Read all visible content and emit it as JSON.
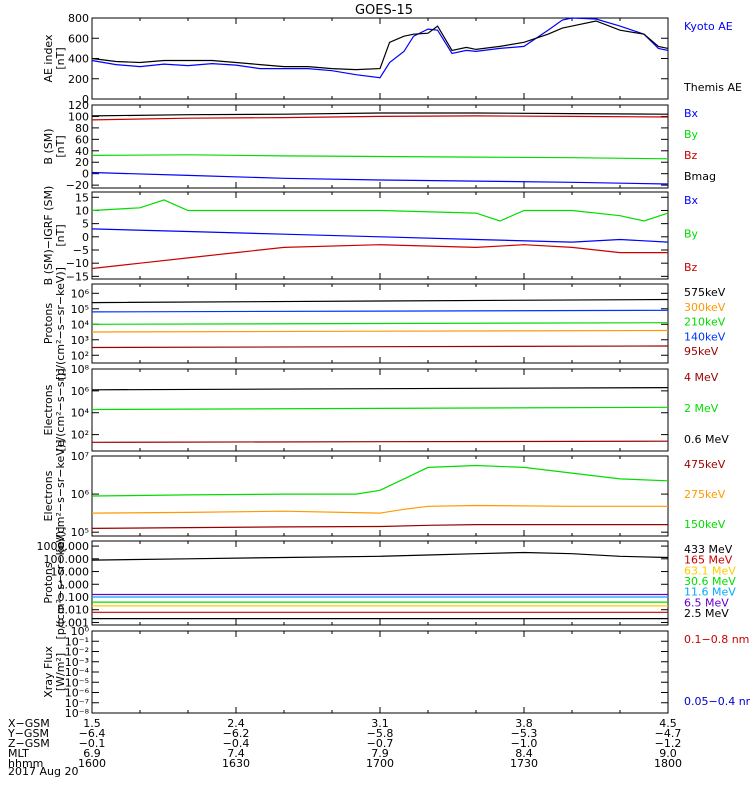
{
  "chart_data": {
    "type": "line",
    "title": "GOES-15",
    "date_label": "2017 Aug 20",
    "time_range": [
      "1600",
      "1800"
    ],
    "panels": [
      {
        "id": "ae",
        "ylabel": [
          "AE index",
          "[nT]"
        ],
        "ylim": [
          0,
          800
        ],
        "scale": "linear",
        "ticks": [
          0,
          200,
          400,
          600,
          800
        ],
        "tick_labels": [
          "0",
          "200",
          "400",
          "600",
          "800"
        ],
        "series": [
          {
            "name": "Kyoto AE",
            "color": "#0000ff",
            "x": [
              0,
              5,
              10,
              15,
              20,
              25,
              30,
              35,
              40,
              45,
              50,
              55,
              60,
              62,
              65,
              67,
              70,
              72,
              75,
              78,
              80,
              85,
              90,
              95,
              98,
              100,
              105,
              110,
              115,
              118,
              120
            ],
            "y": [
              380,
              340,
              320,
              345,
              330,
              350,
              335,
              300,
              300,
              300,
              280,
              240,
              210,
              360,
              470,
              620,
              690,
              680,
              450,
              480,
              470,
              500,
              520,
              680,
              780,
              800,
              790,
              720,
              640,
              500,
              480
            ]
          },
          {
            "name": "Themis AE",
            "color": "#000000",
            "x": [
              0,
              5,
              10,
              15,
              20,
              25,
              30,
              35,
              40,
              45,
              50,
              55,
              60,
              62,
              65,
              67,
              70,
              72,
              75,
              78,
              80,
              85,
              90,
              95,
              98,
              100,
              105,
              110,
              115,
              118,
              120
            ],
            "y": [
              400,
              370,
              360,
              380,
              380,
              380,
              360,
              340,
              320,
              320,
              300,
              290,
              300,
              560,
              620,
              640,
              650,
              720,
              480,
              510,
              490,
              520,
              560,
              640,
              700,
              720,
              770,
              680,
              640,
              520,
              500
            ]
          }
        ]
      },
      {
        "id": "bsm",
        "ylabel": [
          "B (SM)",
          "[nT]"
        ],
        "ylim": [
          -25,
          120
        ],
        "scale": "linear",
        "ticks": [
          -20,
          0,
          20,
          40,
          60,
          80,
          100,
          120
        ],
        "tick_labels": [
          "−20",
          "0",
          "20",
          "40",
          "60",
          "80",
          "100",
          "120"
        ],
        "series": [
          {
            "name": "Bx",
            "color": "#0000ff",
            "x": [
              0,
              20,
              40,
              60,
              80,
              100,
              120
            ],
            "y": [
              2,
              -3,
              -8,
              -11,
              -13,
              -15,
              -18
            ]
          },
          {
            "name": "By",
            "color": "#00dd00",
            "x": [
              0,
              20,
              40,
              60,
              80,
              100,
              120
            ],
            "y": [
              32,
              33,
              31,
              30,
              29,
              28,
              26
            ]
          },
          {
            "name": "Bz",
            "color": "#cc0000",
            "x": [
              0,
              20,
              40,
              60,
              80,
              100,
              120
            ],
            "y": [
              94,
              97,
              98,
              100,
              101,
              100,
              99
            ]
          },
          {
            "name": "Bmag",
            "color": "#000000",
            "x": [
              0,
              20,
              40,
              60,
              80,
              100,
              120
            ],
            "y": [
              101,
              103,
              104,
              106,
              106,
              105,
              104
            ]
          }
        ]
      },
      {
        "id": "bigrf",
        "ylabel": [
          "B (SM)−IGRF (SM)",
          "[nT]"
        ],
        "ylim": [
          -16,
          17
        ],
        "scale": "linear",
        "ticks": [
          -15,
          -10,
          -5,
          0,
          5,
          10,
          15
        ],
        "tick_labels": [
          "−15",
          "−10",
          "−5",
          "0",
          "5",
          "10",
          "15"
        ],
        "series": [
          {
            "name": "Bx",
            "color": "#0000ff",
            "x": [
              0,
              20,
              40,
              60,
              80,
              100,
              110,
              120
            ],
            "y": [
              3,
              2,
              1,
              0,
              -1,
              -2,
              -1,
              -2
            ]
          },
          {
            "name": "By",
            "color": "#00dd00",
            "x": [
              0,
              10,
              15,
              20,
              40,
              60,
              80,
              85,
              90,
              100,
              110,
              115,
              120
            ],
            "y": [
              10,
              11,
              14,
              10,
              10,
              10,
              9,
              6,
              10,
              10,
              8,
              6,
              9
            ]
          },
          {
            "name": "Bz",
            "color": "#cc0000",
            "x": [
              0,
              10,
              20,
              30,
              40,
              60,
              80,
              90,
              100,
              110,
              120
            ],
            "y": [
              -12,
              -10,
              -8,
              -6,
              -4,
              -3,
              -4,
              -3,
              -4,
              -6,
              -6
            ]
          }
        ]
      },
      {
        "id": "protons",
        "ylabel": [
          "Protons",
          "[p/(cm²−s−sr−keV)]"
        ],
        "ylim_log": [
          1.5,
          6.6
        ],
        "scale": "log",
        "ticks": [
          2,
          3,
          4,
          5,
          6
        ],
        "tick_labels": [
          "10²",
          "10³",
          "10⁴",
          "10⁵",
          "10⁶"
        ],
        "series": [
          {
            "name": "575keV",
            "color": "#000000",
            "x": [
              0,
              60,
              120
            ],
            "y": [
              5.4,
              5.5,
              5.6
            ]
          },
          {
            "name": "300keV",
            "color": "#ff9900",
            "x": [
              0,
              60,
              120
            ],
            "y": [
              3.5,
              3.55,
              3.6
            ]
          },
          {
            "name": "210keV",
            "color": "#00dd00",
            "x": [
              0,
              60,
              120
            ],
            "y": [
              4.0,
              4.05,
              4.1
            ]
          },
          {
            "name": "140keV",
            "color": "#0033ff",
            "x": [
              0,
              60,
              120
            ],
            "y": [
              4.8,
              4.85,
              4.9
            ]
          },
          {
            "name": "95keV",
            "color": "#990000",
            "x": [
              0,
              60,
              120
            ],
            "y": [
              2.5,
              2.55,
              2.6
            ]
          }
        ]
      },
      {
        "id": "electrons_mev",
        "ylabel": [
          "Electrons",
          "[e/(cm²−s−sr)]"
        ],
        "ylim_log": [
          0.5,
          8
        ],
        "scale": "log",
        "ticks": [
          2,
          4,
          6,
          8
        ],
        "tick_labels": [
          "10²",
          "10⁴",
          "10⁶",
          "10⁸"
        ],
        "series": [
          {
            "name": "4 MeV",
            "color": "#990000",
            "x": [
              0,
              60,
              120
            ],
            "y": [
              1.3,
              1.35,
              1.4
            ]
          },
          {
            "name": "2 MeV",
            "color": "#00dd00",
            "x": [
              0,
              60,
              120
            ],
            "y": [
              4.3,
              4.4,
              4.5
            ]
          },
          {
            "name": "0.6 MeV",
            "color": "#000000",
            "x": [
              0,
              60,
              120
            ],
            "y": [
              6.1,
              6.2,
              6.3
            ]
          }
        ]
      },
      {
        "id": "electrons_kev",
        "ylabel": [
          "Electrons",
          "[e/(cm²−s−sr−keV)]"
        ],
        "ylim_log": [
          4.9,
          7.0
        ],
        "scale": "log",
        "ticks": [
          5,
          6,
          7
        ],
        "tick_labels": [
          "10⁵",
          "10⁶",
          "10⁷"
        ],
        "series": [
          {
            "name": "475keV",
            "color": "#990000",
            "x": [
              0,
              20,
              40,
              60,
              70,
              80,
              100,
              120
            ],
            "y": [
              5.1,
              5.12,
              5.14,
              5.15,
              5.18,
              5.2,
              5.2,
              5.2
            ]
          },
          {
            "name": "275keV",
            "color": "#ff9900",
            "x": [
              0,
              20,
              40,
              60,
              65,
              70,
              80,
              100,
              120
            ],
            "y": [
              5.5,
              5.52,
              5.55,
              5.5,
              5.6,
              5.68,
              5.7,
              5.68,
              5.68
            ]
          },
          {
            "name": "150keV",
            "color": "#00dd00",
            "x": [
              0,
              20,
              40,
              55,
              60,
              65,
              70,
              80,
              90,
              100,
              110,
              120
            ],
            "y": [
              5.95,
              5.98,
              6.0,
              6.0,
              6.1,
              6.4,
              6.7,
              6.75,
              6.7,
              6.55,
              6.4,
              6.35
            ]
          }
        ]
      },
      {
        "id": "protons_mev",
        "ylabel": [
          "Protons",
          "[p/(cm²−s−sr−keV)]"
        ],
        "ylim_log": [
          -3.2,
          3.4
        ],
        "scale": "log",
        "ticks": [
          -3,
          -2,
          -1,
          0,
          1,
          2,
          3
        ],
        "tick_labels": [
          "0.001",
          "0.010",
          "0.100",
          "1.000",
          "10.000",
          "100.000",
          "1000.000"
        ],
        "series": [
          {
            "name": "433 MeV",
            "color": "#000000",
            "x": [
              0,
              20,
              40,
              60,
              70,
              80,
              90,
              100,
              110,
              120
            ],
            "y": [
              1.9,
              2.0,
              2.1,
              2.2,
              2.3,
              2.4,
              2.5,
              2.4,
              2.2,
              2.1
            ]
          },
          {
            "name": "165 MeV",
            "color": "#cc0000",
            "x": [
              0,
              60,
              120
            ],
            "y": [
              -2.2,
              -2.2,
              -2.2
            ]
          },
          {
            "name": "63.1 MeV",
            "color": "#ffcc00",
            "x": [
              0,
              60,
              120
            ],
            "y": [
              -1.7,
              -1.7,
              -1.7
            ]
          },
          {
            "name": "30.6 MeV",
            "color": "#00dd00",
            "x": [
              0,
              60,
              120
            ],
            "y": [
              -1.4,
              -1.4,
              -1.4
            ]
          },
          {
            "name": "11.6 MeV",
            "color": "#00aaff",
            "x": [
              0,
              60,
              120
            ],
            "y": [
              -1.0,
              -1.0,
              -1.0
            ]
          },
          {
            "name": "6.5 MeV",
            "color": "#6600cc",
            "x": [
              0,
              60,
              120
            ],
            "y": [
              -0.8,
              -0.8,
              -0.8
            ]
          },
          {
            "name": "2.5 MeV",
            "color": "#000000",
            "x": [
              0,
              60,
              120
            ],
            "y": [
              -2.7,
              -2.7,
              -2.7
            ]
          }
        ]
      },
      {
        "id": "xray",
        "ylabel": [
          "Xray Flux",
          "[W/m²]"
        ],
        "ylim_log": [
          -8,
          0
        ],
        "scale": "log",
        "ticks": [
          -8,
          -7,
          -6,
          -5,
          -4,
          -3,
          -2,
          -1,
          0
        ],
        "tick_labels": [
          "10⁻⁸",
          "10⁻⁷",
          "10⁻⁶",
          "10⁻⁵",
          "10⁻⁴",
          "10⁻³",
          "10⁻²",
          "10⁻¹",
          "10⁰"
        ],
        "series": [
          {
            "name": "0.1−0.8 nm",
            "color": "#cc0000",
            "x": [],
            "y": []
          },
          {
            "name": "0.05−0.4 nm",
            "color": "#0000cc",
            "x": [],
            "y": []
          }
        ]
      }
    ],
    "ephemeris": {
      "row_labels": [
        "X−GSM",
        "Y−GSM",
        "Z−GSM",
        "MLT",
        "hhmm"
      ],
      "columns": [
        {
          "values": [
            "1.5",
            "−6.4",
            "−0.1",
            "6.9",
            "1600"
          ]
        },
        {
          "values": [
            "2.4",
            "−6.2",
            "−0.4",
            "7.4",
            "1630"
          ]
        },
        {
          "values": [
            "3.1",
            "−5.8",
            "−0.7",
            "7.9",
            "1700"
          ]
        },
        {
          "values": [
            "3.8",
            "−5.3",
            "−1.0",
            "8.4",
            "1730"
          ]
        },
        {
          "values": [
            "4.5",
            "−4.7",
            "−1.2",
            "9.0",
            "1800"
          ]
        }
      ]
    }
  }
}
